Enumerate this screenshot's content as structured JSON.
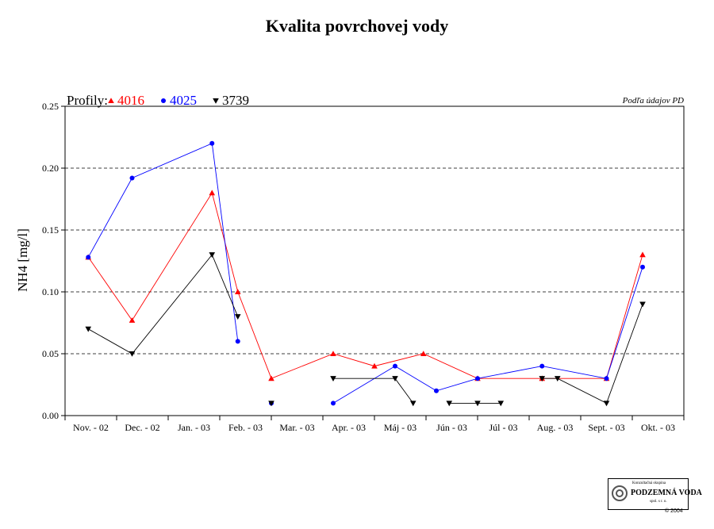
{
  "chart_data": {
    "type": "line",
    "title": "Kvalita povrchovej vody",
    "ylabel": "NH4 [mg/l]",
    "source_note": "Podľa údajov PD",
    "legend_label": "Profily:",
    "ylim": [
      0,
      0.25
    ],
    "yticks": [
      "0.00",
      "0.05",
      "0.10",
      "0.15",
      "0.20",
      "0.25"
    ],
    "ytick_values": [
      0,
      0.05,
      0.1,
      0.15,
      0.2,
      0.25
    ],
    "grid": "horizontal dashed",
    "categories": [
      "Nov. - 02",
      "Dec. - 02",
      "Jan. - 03",
      "Feb. - 03",
      "Mar. - 03",
      "Apr. - 03",
      "Máj - 03",
      "Jún - 03",
      "Júl - 03",
      "Aug. - 03",
      "Sept. - 03",
      "Okt. - 03"
    ],
    "series": [
      {
        "name": "4016",
        "color": "#ff0000",
        "marker": "triangle-up",
        "points": [
          {
            "x": 0.45,
            "y": 0.128
          },
          {
            "x": 1.3,
            "y": 0.077
          },
          {
            "x": 2.85,
            "y": 0.18
          },
          {
            "x": 3.35,
            "y": 0.1
          },
          {
            "x": 4.0,
            "y": 0.03
          },
          {
            "x": 5.2,
            "y": 0.05
          },
          {
            "x": 6.0,
            "y": 0.04
          },
          {
            "x": 6.95,
            "y": 0.05
          },
          {
            "x": 8.0,
            "y": 0.03
          },
          {
            "x": 9.25,
            "y": 0.03
          },
          {
            "x": 10.5,
            "y": 0.03
          },
          {
            "x": 11.2,
            "y": 0.13
          }
        ],
        "segments": [
          [
            0,
            11
          ]
        ]
      },
      {
        "name": "4025",
        "color": "#0000ff",
        "marker": "circle",
        "points": [
          {
            "x": 0.45,
            "y": 0.128
          },
          {
            "x": 1.3,
            "y": 0.192
          },
          {
            "x": 2.85,
            "y": 0.22
          },
          {
            "x": 3.35,
            "y": 0.06
          },
          {
            "x": 4.0,
            "y": 0.01
          },
          {
            "x": 5.2,
            "y": 0.01
          },
          {
            "x": 6.4,
            "y": 0.04
          },
          {
            "x": 7.2,
            "y": 0.02
          },
          {
            "x": 8.0,
            "y": 0.03
          },
          {
            "x": 9.25,
            "y": 0.04
          },
          {
            "x": 10.5,
            "y": 0.03
          },
          {
            "x": 11.2,
            "y": 0.12
          }
        ],
        "segments": [
          [
            0,
            3
          ],
          [
            5,
            11
          ]
        ]
      },
      {
        "name": "3739",
        "color": "#000000",
        "marker": "triangle-down",
        "points": [
          {
            "x": 0.45,
            "y": 0.07
          },
          {
            "x": 1.3,
            "y": 0.05
          },
          {
            "x": 2.85,
            "y": 0.13
          },
          {
            "x": 3.35,
            "y": 0.08
          },
          {
            "x": 4.0,
            "y": 0.01
          },
          {
            "x": 5.2,
            "y": 0.03
          },
          {
            "x": 6.4,
            "y": 0.03
          },
          {
            "x": 6.75,
            "y": 0.01
          },
          {
            "x": 7.45,
            "y": 0.01
          },
          {
            "x": 8.0,
            "y": 0.01
          },
          {
            "x": 8.45,
            "y": 0.01
          },
          {
            "x": 9.25,
            "y": 0.03
          },
          {
            "x": 9.55,
            "y": 0.03
          },
          {
            "x": 10.5,
            "y": 0.01
          },
          {
            "x": 11.2,
            "y": 0.09
          }
        ],
        "segments": [
          [
            0,
            3
          ],
          [
            5,
            7
          ],
          [
            8,
            10
          ],
          [
            11,
            14
          ]
        ]
      }
    ]
  },
  "logo": {
    "line1": "Konzultačná skupina",
    "line2": "PODZEMNÁ VODA",
    "line3": "spol. s r. o."
  },
  "copyright": "© 2004"
}
